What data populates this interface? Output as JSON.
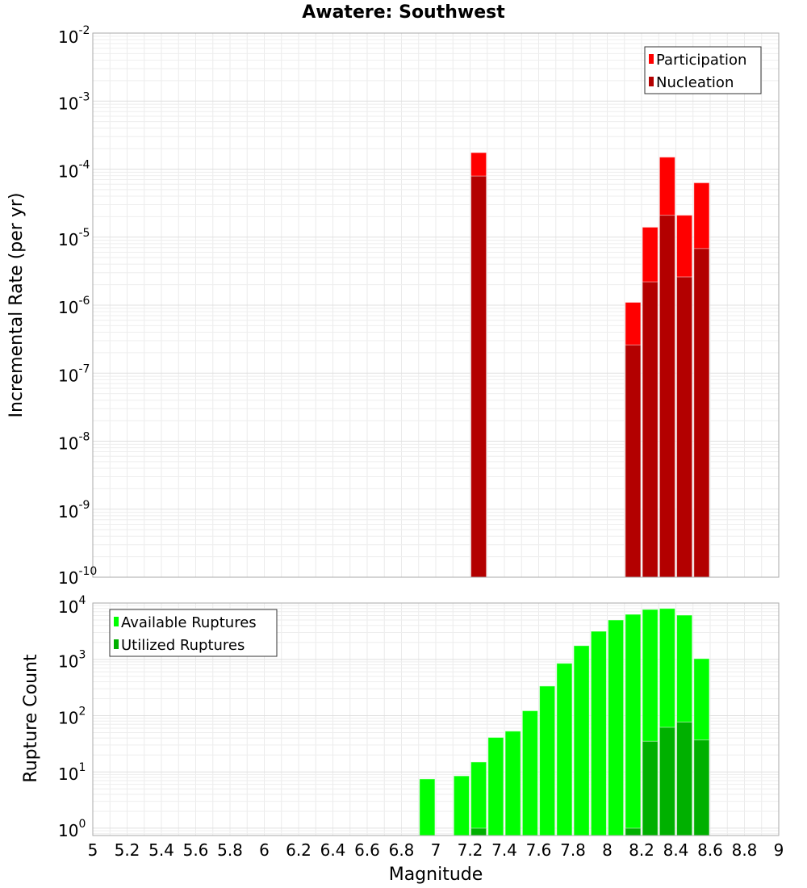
{
  "chart_data": [
    {
      "type": "bar",
      "title": "Awatere: Southwest",
      "xlabel": "",
      "ylabel": "Incremental Rate (per yr)",
      "yscale": "log",
      "xlim": [
        5,
        9
      ],
      "ylim_exp": [
        -10,
        -2
      ],
      "ytick_exponents": [
        "-2",
        "-3",
        "-4",
        "-5",
        "-6",
        "-7",
        "-8",
        "-9",
        "-10"
      ],
      "bar_width": 0.09,
      "legend_position": "top-right",
      "series": [
        {
          "name": "Participation",
          "color": "#ff0000",
          "x": [
            7.25,
            8.15,
            8.25,
            8.35,
            8.45,
            8.55
          ],
          "values": [
            0.000175,
            1.1e-06,
            1.4e-05,
            0.00015,
            2.1e-05,
            6.3e-05
          ]
        },
        {
          "name": "Nucleation",
          "color": "#b30000",
          "x": [
            7.25,
            8.15,
            8.25,
            8.35,
            8.45,
            8.55
          ],
          "values": [
            7.9e-05,
            2.6e-07,
            2.2e-06,
            2.1e-05,
            2.6e-06,
            6.8e-06
          ]
        }
      ]
    },
    {
      "type": "bar",
      "xlabel": "Magnitude",
      "ylabel": "Rupture Count",
      "yscale": "log",
      "xlim": [
        5,
        9
      ],
      "ylim_exp": [
        -0.13,
        4
      ],
      "ytick_exponents": [
        "4",
        "3",
        "2",
        "1",
        "0"
      ],
      "xticks": [
        "5",
        "5.2",
        "5.4",
        "5.6",
        "5.8",
        "6",
        "6.2",
        "6.4",
        "6.6",
        "6.8",
        "7",
        "7.2",
        "7.4",
        "7.6",
        "7.8",
        "8",
        "8.2",
        "8.4",
        "8.6",
        "8.8",
        "9"
      ],
      "bar_width": 0.09,
      "legend_position": "top-left",
      "series": [
        {
          "name": "Available Ruptures",
          "color": "#00ff00",
          "x": [
            6.95,
            7.15,
            7.25,
            7.35,
            7.45,
            7.55,
            7.65,
            7.75,
            7.85,
            7.95,
            8.05,
            8.15,
            8.25,
            8.35,
            8.45,
            8.55
          ],
          "values": [
            7.5,
            8.5,
            15,
            41,
            53,
            122,
            335,
            850,
            1750,
            3150,
            5000,
            6300,
            7700,
            8000,
            6100,
            1030
          ]
        },
        {
          "name": "Utilized Ruptures",
          "color": "#00b000",
          "x": [
            7.25,
            8.15,
            8.25,
            8.35,
            8.45,
            8.55
          ],
          "values": [
            1,
            1,
            35,
            62,
            77,
            37
          ]
        }
      ]
    }
  ]
}
